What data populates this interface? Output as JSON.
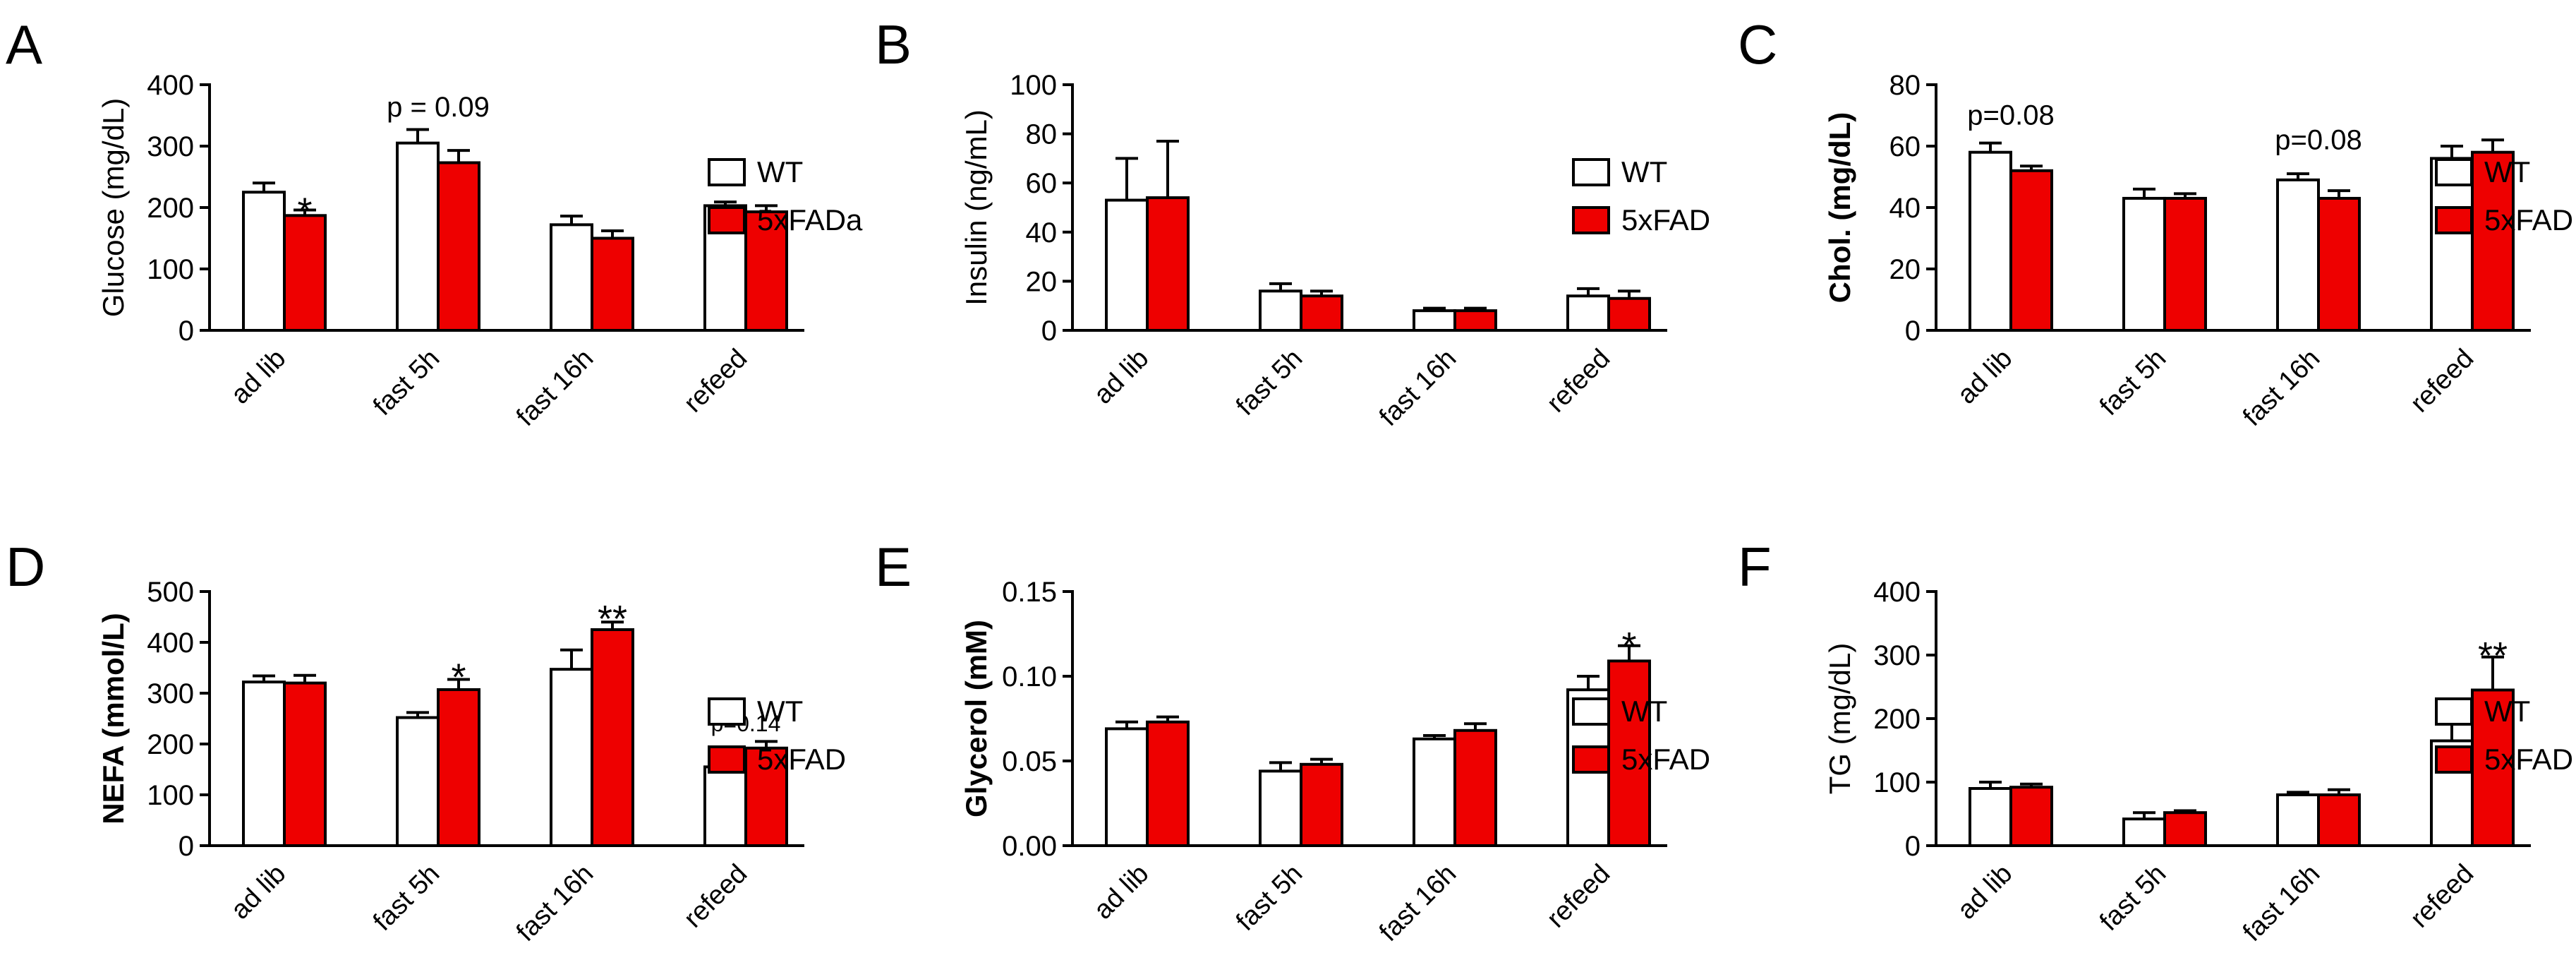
{
  "colors": {
    "wt": "#ffffff",
    "fad": "#ee0000",
    "axis": "#000000"
  },
  "chart_data": [
    {
      "panel": "A",
      "type": "bar",
      "ylabel": "Glucose (mg/dL)",
      "ylabel_bold": false,
      "ylim": [
        0,
        400
      ],
      "yticks": [
        0,
        100,
        200,
        300,
        400
      ],
      "ytick_labels": [
        "0",
        "100",
        "200",
        "300",
        "400"
      ],
      "categories": [
        "ad lib",
        "fast 5h",
        "fast 16h",
        "refeed"
      ],
      "series": [
        {
          "name": "WT",
          "values": [
            225,
            305,
            172,
            203
          ],
          "errors": [
            15,
            22,
            14,
            6
          ]
        },
        {
          "name": "5xFADa",
          "values": [
            187,
            273,
            150,
            193
          ],
          "errors": [
            9,
            20,
            12,
            10
          ]
        }
      ],
      "annotations": [
        {
          "text": "*",
          "category": 0,
          "series": 1,
          "at": 205,
          "size": "big"
        },
        {
          "text": "p = 0.09",
          "category": 1,
          "series": "center",
          "at": 348,
          "size": "small"
        }
      ]
    },
    {
      "panel": "B",
      "type": "bar",
      "ylabel": "Insulin (ng/mL)",
      "ylabel_bold": false,
      "ylim": [
        0,
        100
      ],
      "yticks": [
        0,
        20,
        40,
        60,
        80,
        100
      ],
      "ytick_labels": [
        "0",
        "20",
        "40",
        "60",
        "80",
        "100"
      ],
      "categories": [
        "ad lib",
        "fast 5h",
        "fast 16h",
        "refeed"
      ],
      "series": [
        {
          "name": "WT",
          "values": [
            53,
            16,
            8,
            14
          ],
          "errors": [
            17,
            3,
            1,
            3
          ]
        },
        {
          "name": "5xFAD",
          "values": [
            54,
            14,
            8,
            13
          ],
          "errors": [
            23,
            2,
            1,
            3
          ]
        }
      ],
      "annotations": []
    },
    {
      "panel": "C",
      "type": "bar",
      "ylabel": "Chol. (mg/dL)",
      "ylabel_bold": true,
      "ylim": [
        0,
        80
      ],
      "yticks": [
        0,
        20,
        40,
        60,
        80
      ],
      "ytick_labels": [
        "0",
        "20",
        "40",
        "60",
        "80"
      ],
      "categories": [
        "ad lib",
        "fast 5h",
        "fast 16h",
        "refeed"
      ],
      "series": [
        {
          "name": "WT",
          "values": [
            58,
            43,
            49,
            56
          ],
          "errors": [
            3,
            3,
            2,
            4
          ]
        },
        {
          "name": "5xFAD",
          "values": [
            52,
            43,
            43,
            58
          ],
          "errors": [
            1.5,
            1.5,
            2.5,
            4
          ]
        }
      ],
      "annotations": [
        {
          "text": "p=0.08",
          "category": 0,
          "series": "center",
          "at": 67,
          "size": "small"
        },
        {
          "text": "p=0.08",
          "category": 2,
          "series": "center",
          "at": 59,
          "size": "small"
        }
      ]
    },
    {
      "panel": "D",
      "type": "bar",
      "ylabel": "NEFA (mmol/L)",
      "ylabel_bold": true,
      "ylim": [
        0,
        500
      ],
      "yticks": [
        0,
        100,
        200,
        300,
        400,
        500
      ],
      "ytick_labels": [
        "0",
        "100",
        "200",
        "300",
        "400",
        "500"
      ],
      "categories": [
        "ad lib",
        "fast 5h",
        "fast 16h",
        "refeed"
      ],
      "series": [
        {
          "name": "WT",
          "values": [
            322,
            252,
            347,
            155
          ],
          "errors": [
            12,
            10,
            38,
            10
          ]
        },
        {
          "name": "5xFAD",
          "values": [
            320,
            307,
            425,
            192
          ],
          "errors": [
            15,
            20,
            15,
            13
          ]
        }
      ],
      "annotations": [
        {
          "text": "*",
          "category": 1,
          "series": 1,
          "at": 345,
          "size": "big"
        },
        {
          "text": "**",
          "category": 2,
          "series": 1,
          "at": 460,
          "size": "big"
        },
        {
          "text": "p=0.14",
          "category": 3,
          "series": "center",
          "at": 225,
          "size": "tiny"
        }
      ]
    },
    {
      "panel": "E",
      "type": "bar",
      "ylabel": "Glycerol (mM)",
      "ylabel_bold": true,
      "ylim": [
        0,
        0.15
      ],
      "yticks": [
        0,
        0.05,
        0.1,
        0.15
      ],
      "ytick_labels": [
        "0.00",
        "0.05",
        "0.10",
        "0.15"
      ],
      "categories": [
        "ad lib",
        "fast 5h",
        "fast 16h",
        "refeed"
      ],
      "series": [
        {
          "name": "WT",
          "values": [
            0.069,
            0.044,
            0.063,
            0.092
          ],
          "errors": [
            0.004,
            0.005,
            0.002,
            0.008
          ]
        },
        {
          "name": "5xFAD",
          "values": [
            0.073,
            0.048,
            0.068,
            0.109
          ],
          "errors": [
            0.003,
            0.003,
            0.004,
            0.009
          ]
        }
      ],
      "annotations": [
        {
          "text": "*",
          "category": 3,
          "series": 1,
          "at": 0.122,
          "size": "big"
        }
      ]
    },
    {
      "panel": "F",
      "type": "bar",
      "ylabel": "TG (mg/dL)",
      "ylabel_bold": false,
      "ylim": [
        0,
        400
      ],
      "yticks": [
        0,
        100,
        200,
        300,
        400
      ],
      "ytick_labels": [
        "0",
        "100",
        "200",
        "300",
        "400"
      ],
      "categories": [
        "ad lib",
        "fast 5h",
        "fast 16h",
        "refeed"
      ],
      "series": [
        {
          "name": "WT",
          "values": [
            90,
            42,
            80,
            165
          ],
          "errors": [
            10,
            10,
            4,
            28
          ]
        },
        {
          "name": "5xFAD",
          "values": [
            92,
            52,
            80,
            245
          ],
          "errors": [
            5,
            3,
            8,
            52
          ]
        }
      ],
      "annotations": [
        {
          "text": "**",
          "category": 3,
          "series": 1,
          "at": 310,
          "size": "big"
        }
      ]
    }
  ]
}
